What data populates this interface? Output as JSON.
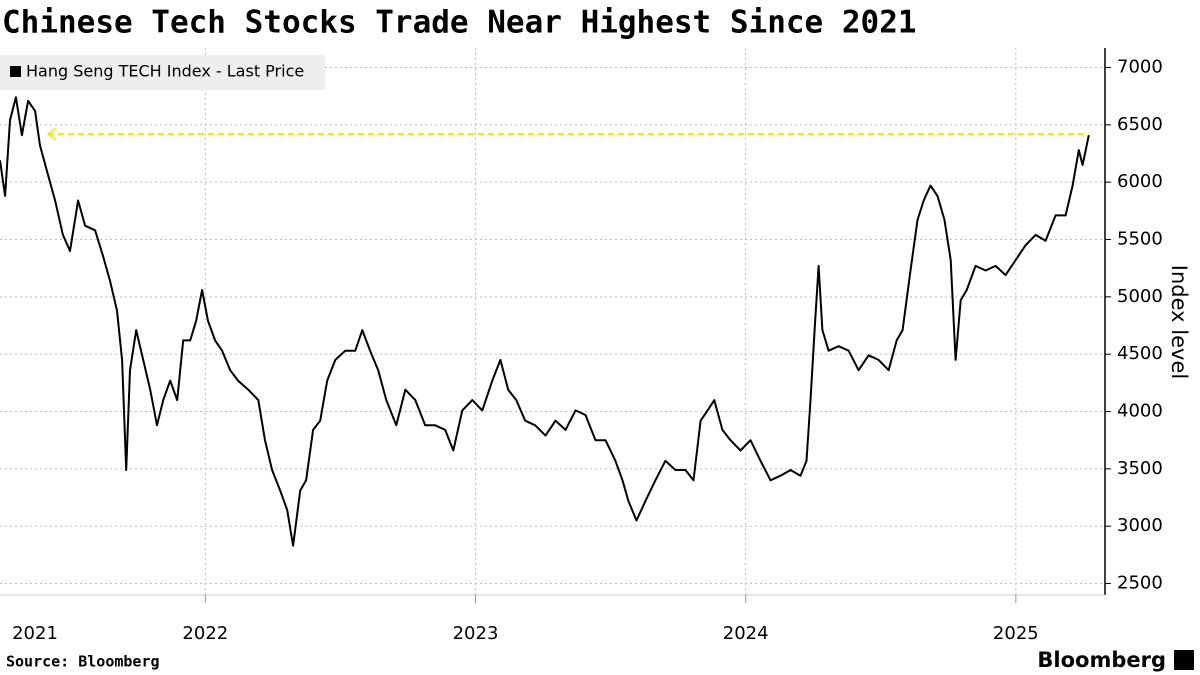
{
  "chart_data": {
    "type": "line",
    "title": "Chinese Tech Stocks Trade Near Highest Since 2021",
    "y_axis_label": "Index level",
    "source": "Source: Bloomberg",
    "brand": "Bloomberg",
    "legend": "top-left",
    "grid": true,
    "xlim": [
      2021.24,
      2025.33
    ],
    "xticks": [
      2021,
      2022,
      2023,
      2024,
      2025
    ],
    "ylim": [
      2400,
      7170
    ],
    "yticks": [
      2500,
      3000,
      3500,
      4000,
      4500,
      5000,
      5500,
      6000,
      6500,
      7000
    ],
    "reference_line": {
      "value": 6420,
      "color": "#ffe600"
    },
    "x": [
      2021.24,
      2021.259,
      2021.277,
      2021.299,
      2021.321,
      2021.344,
      2021.37,
      2021.388,
      2021.418,
      2021.444,
      2021.473,
      2021.499,
      2021.529,
      2021.555,
      2021.592,
      2021.621,
      2021.647,
      2021.673,
      2021.692,
      2021.707,
      2021.721,
      2021.744,
      2021.77,
      2021.796,
      2021.821,
      2021.844,
      2021.87,
      2021.896,
      2021.918,
      2021.944,
      2021.966,
      2021.988,
      2022.01,
      2022.036,
      2022.062,
      2022.092,
      2022.121,
      2022.159,
      2022.196,
      2022.221,
      2022.247,
      2022.277,
      2022.303,
      2022.325,
      2022.351,
      2022.373,
      2022.399,
      2022.425,
      2022.451,
      2022.481,
      2022.518,
      2022.555,
      2022.581,
      2022.61,
      2022.64,
      2022.67,
      2022.707,
      2022.74,
      2022.777,
      2022.814,
      2022.851,
      2022.888,
      2022.918,
      2022.951,
      2022.988,
      2023.025,
      2023.062,
      2023.092,
      2023.121,
      2023.151,
      2023.184,
      2023.221,
      2023.259,
      2023.296,
      2023.333,
      2023.37,
      2023.407,
      2023.444,
      2023.481,
      2023.518,
      2023.544,
      2023.566,
      2023.596,
      2023.629,
      2023.666,
      2023.703,
      2023.74,
      2023.777,
      2023.807,
      2023.833,
      2023.859,
      2023.884,
      2023.914,
      2023.944,
      2023.981,
      2024.018,
      2024.055,
      2024.092,
      2024.129,
      2024.166,
      2024.203,
      2024.225,
      2024.24,
      2024.255,
      2024.27,
      2024.284,
      2024.307,
      2024.344,
      2024.381,
      2024.418,
      2024.455,
      2024.492,
      2024.529,
      2024.559,
      2024.581,
      2024.61,
      2024.636,
      2024.659,
      2024.684,
      2024.71,
      2024.736,
      2024.759,
      2024.777,
      2024.796,
      2024.818,
      2024.851,
      2024.888,
      2024.925,
      2024.962,
      2024.999,
      2025.036,
      2025.073,
      2025.11,
      2025.147,
      2025.184,
      2025.21,
      2025.233,
      2025.247,
      2025.27
    ],
    "series": [
      {
        "name": "Hang Seng TECH Index - Last Price",
        "color": "#000000",
        "values": [
          6190,
          5880,
          6540,
          6740,
          6410,
          6710,
          6620,
          6320,
          6060,
          5840,
          5540,
          5400,
          5840,
          5620,
          5580,
          5360,
          5140,
          4880,
          4450,
          3490,
          4360,
          4710,
          4450,
          4190,
          3880,
          4100,
          4270,
          4100,
          4620,
          4620,
          4790,
          5060,
          4790,
          4620,
          4530,
          4360,
          4270,
          4190,
          4100,
          3750,
          3490,
          3310,
          3140,
          2830,
          3310,
          3400,
          3840,
          3920,
          4270,
          4450,
          4530,
          4530,
          4710,
          4530,
          4360,
          4100,
          3880,
          4190,
          4100,
          3880,
          3880,
          3840,
          3660,
          4010,
          4100,
          4010,
          4270,
          4450,
          4190,
          4100,
          3920,
          3880,
          3790,
          3920,
          3840,
          4010,
          3970,
          3750,
          3750,
          3570,
          3400,
          3220,
          3050,
          3220,
          3400,
          3570,
          3490,
          3490,
          3400,
          3920,
          4010,
          4100,
          3840,
          3750,
          3660,
          3750,
          3570,
          3400,
          3440,
          3490,
          3440,
          3570,
          4100,
          4710,
          5270,
          4710,
          4530,
          4570,
          4530,
          4360,
          4490,
          4450,
          4360,
          4620,
          4710,
          5230,
          5670,
          5840,
          5970,
          5880,
          5670,
          5320,
          4450,
          4970,
          5060,
          5270,
          5230,
          5270,
          5190,
          5320,
          5450,
          5540,
          5490,
          5710,
          5710,
          5970,
          6280,
          6150,
          6410
        ]
      }
    ]
  }
}
